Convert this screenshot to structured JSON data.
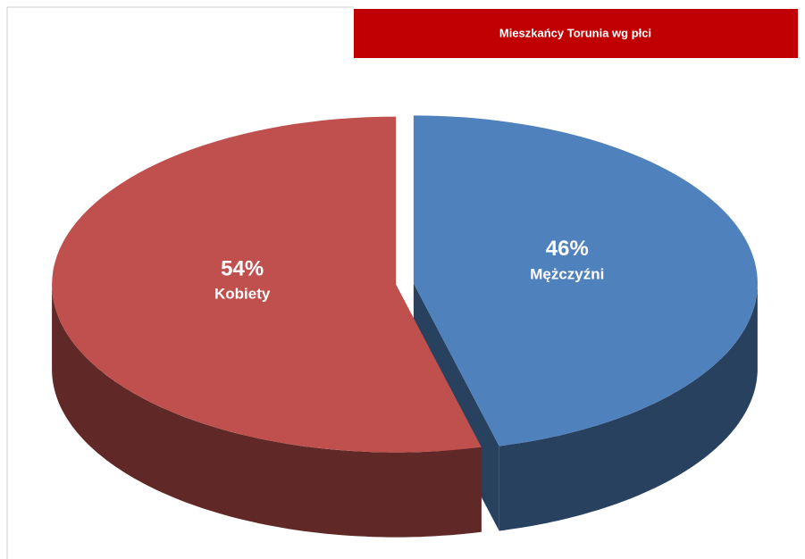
{
  "chart_data": {
    "type": "pie",
    "title": "Mieszkańcy Torunia wg płci",
    "categories": [
      "Kobiety",
      "Mężczyźni"
    ],
    "values": [
      54,
      46
    ],
    "value_labels": [
      "54%",
      "46%"
    ],
    "colors": [
      "#c0504d",
      "#4f81bd"
    ]
  }
}
